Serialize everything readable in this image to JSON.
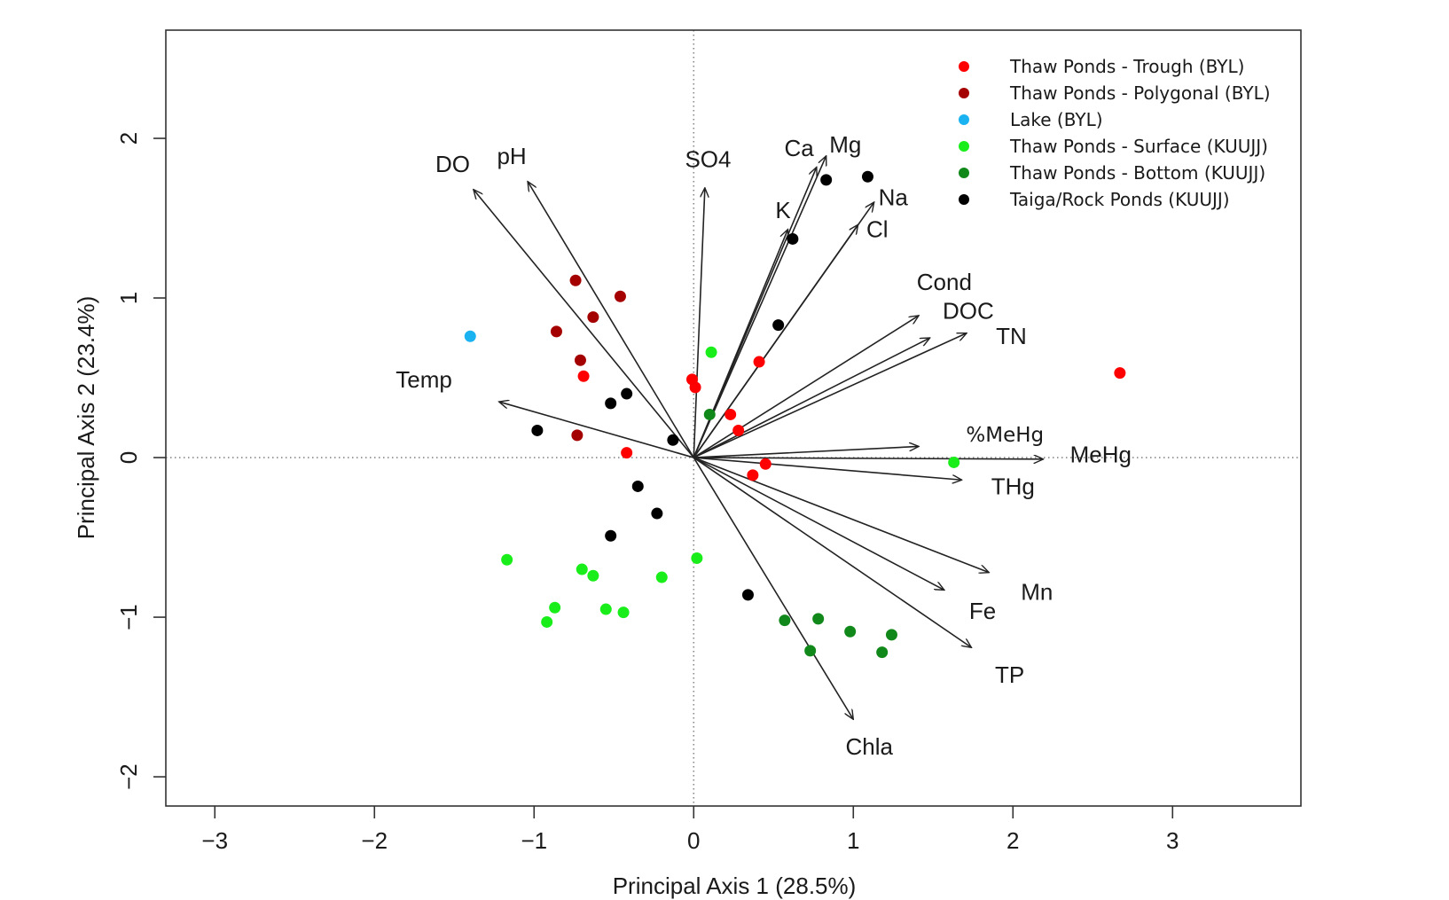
{
  "chart_data": {
    "type": "scatter",
    "subtype": "pca-biplot",
    "title": "",
    "xlabel": "Principal Axis 1 (28.5%)",
    "ylabel": "Principal Axis 2 (23.4%)",
    "xlim": [
      -3.307,
      3.804
    ],
    "ylim": [
      -2.183,
      2.678
    ],
    "xticks": [
      -3,
      -2,
      -1,
      0,
      1,
      2,
      3
    ],
    "yticks": [
      -2,
      -1,
      0,
      1,
      2
    ],
    "xtick_labels": [
      "−3",
      "−2",
      "−1",
      "0",
      "1",
      "2",
      "3"
    ],
    "ytick_labels": [
      "−2",
      "−1",
      "0",
      "1",
      "2"
    ],
    "grid": false,
    "reference_lines": {
      "x": 0,
      "y": 0,
      "style": "dotted"
    },
    "legend_position": "top-right",
    "series": [
      {
        "name": "Thaw Ponds - Trough (BYL)",
        "color": "#ff0000",
        "points": [
          [
            -0.69,
            0.51
          ],
          [
            -0.42,
            0.03
          ],
          [
            -0.01,
            0.49
          ],
          [
            0.01,
            0.44
          ],
          [
            0.23,
            0.27
          ],
          [
            0.28,
            0.17
          ],
          [
            0.41,
            0.6
          ],
          [
            0.45,
            -0.04
          ],
          [
            0.37,
            -0.11
          ],
          [
            2.67,
            0.53
          ]
        ]
      },
      {
        "name": "Thaw Ponds - Polygonal (BYL)",
        "color": "#a50000",
        "points": [
          [
            -0.74,
            1.11
          ],
          [
            -0.46,
            1.01
          ],
          [
            -0.63,
            0.88
          ],
          [
            -0.86,
            0.79
          ],
          [
            -0.71,
            0.61
          ],
          [
            -0.73,
            0.14
          ]
        ]
      },
      {
        "name": "Lake (BYL)",
        "color": "#1ab2f0",
        "points": [
          [
            -1.4,
            0.76
          ]
        ]
      },
      {
        "name": "Thaw Ponds - Surface (KUUJJ)",
        "color": "#1aee1a",
        "points": [
          [
            0.11,
            0.66
          ],
          [
            1.63,
            -0.03
          ],
          [
            0.02,
            -0.63
          ],
          [
            -1.17,
            -0.64
          ],
          [
            -0.7,
            -0.7
          ],
          [
            -0.63,
            -0.74
          ],
          [
            -0.2,
            -0.75
          ],
          [
            -0.87,
            -0.94
          ],
          [
            -0.92,
            -1.03
          ],
          [
            -0.55,
            -0.95
          ],
          [
            -0.44,
            -0.97
          ]
        ]
      },
      {
        "name": "Thaw Ponds - Bottom (KUUJJ)",
        "color": "#11881a",
        "points": [
          [
            0.1,
            0.27
          ],
          [
            0.57,
            -1.02
          ],
          [
            0.78,
            -1.01
          ],
          [
            0.98,
            -1.09
          ],
          [
            1.24,
            -1.11
          ],
          [
            0.73,
            -1.21
          ],
          [
            1.18,
            -1.22
          ]
        ]
      },
      {
        "name": "Taiga/Rock Ponds (KUUJJ)",
        "color": "#000000",
        "points": [
          [
            -0.42,
            0.4
          ],
          [
            -0.52,
            0.34
          ],
          [
            -0.98,
            0.17
          ],
          [
            -0.13,
            0.11
          ],
          [
            0.83,
            1.74
          ],
          [
            1.09,
            1.76
          ],
          [
            0.62,
            1.37
          ],
          [
            0.53,
            0.83
          ],
          [
            -0.35,
            -0.18
          ],
          [
            -0.23,
            -0.35
          ],
          [
            -0.52,
            -0.49
          ],
          [
            0.34,
            -0.86
          ]
        ]
      }
    ],
    "vectors": [
      {
        "name": "DO",
        "x": -1.38,
        "y": 1.68,
        "label_x": -1.51,
        "label_y": 1.84
      },
      {
        "name": "pH",
        "x": -1.04,
        "y": 1.73,
        "label_x": -1.14,
        "label_y": 1.89
      },
      {
        "name": "SO4",
        "x": 0.07,
        "y": 1.69,
        "label_x": 0.09,
        "label_y": 1.87
      },
      {
        "name": "Ca",
        "x": 0.77,
        "y": 1.82,
        "label_x": 0.66,
        "label_y": 1.94
      },
      {
        "name": "Mg",
        "x": 0.83,
        "y": 1.89,
        "label_x": 0.95,
        "label_y": 1.96
      },
      {
        "name": "K",
        "x": 0.59,
        "y": 1.43,
        "label_x": 0.56,
        "label_y": 1.55
      },
      {
        "name": "Na",
        "x": 1.13,
        "y": 1.6,
        "label_x": 1.25,
        "label_y": 1.63
      },
      {
        "name": "Cl",
        "x": 1.03,
        "y": 1.46,
        "label_x": 1.15,
        "label_y": 1.43
      },
      {
        "name": "Cond",
        "x": 1.41,
        "y": 0.89,
        "label_x": 1.57,
        "label_y": 1.1
      },
      {
        "name": "DOC",
        "x": 1.48,
        "y": 0.75,
        "label_x": 1.72,
        "label_y": 0.92
      },
      {
        "name": "TN",
        "x": 1.71,
        "y": 0.78,
        "label_x": 1.99,
        "label_y": 0.76
      },
      {
        "name": "Temp",
        "x": -1.22,
        "y": 0.35,
        "label_x": -1.69,
        "label_y": 0.49
      },
      {
        "name": "%MeHg",
        "x": 1.41,
        "y": 0.07,
        "label_x": 1.95,
        "label_y": 0.14,
        "alt_font": true
      },
      {
        "name": "MeHg",
        "x": 2.19,
        "y": -0.01,
        "label_x": 2.55,
        "label_y": 0.02
      },
      {
        "name": "THg",
        "x": 1.68,
        "y": -0.14,
        "label_x": 2.0,
        "label_y": -0.18
      },
      {
        "name": "Mn",
        "x": 1.85,
        "y": -0.72,
        "label_x": 2.15,
        "label_y": -0.84
      },
      {
        "name": "Fe",
        "x": 1.57,
        "y": -0.83,
        "label_x": 1.81,
        "label_y": -0.96
      },
      {
        "name": "TP",
        "x": 1.74,
        "y": -1.19,
        "label_x": 1.98,
        "label_y": -1.36
      },
      {
        "name": "Chla",
        "x": 1.0,
        "y": -1.64,
        "label_x": 1.1,
        "label_y": -1.81
      }
    ]
  }
}
